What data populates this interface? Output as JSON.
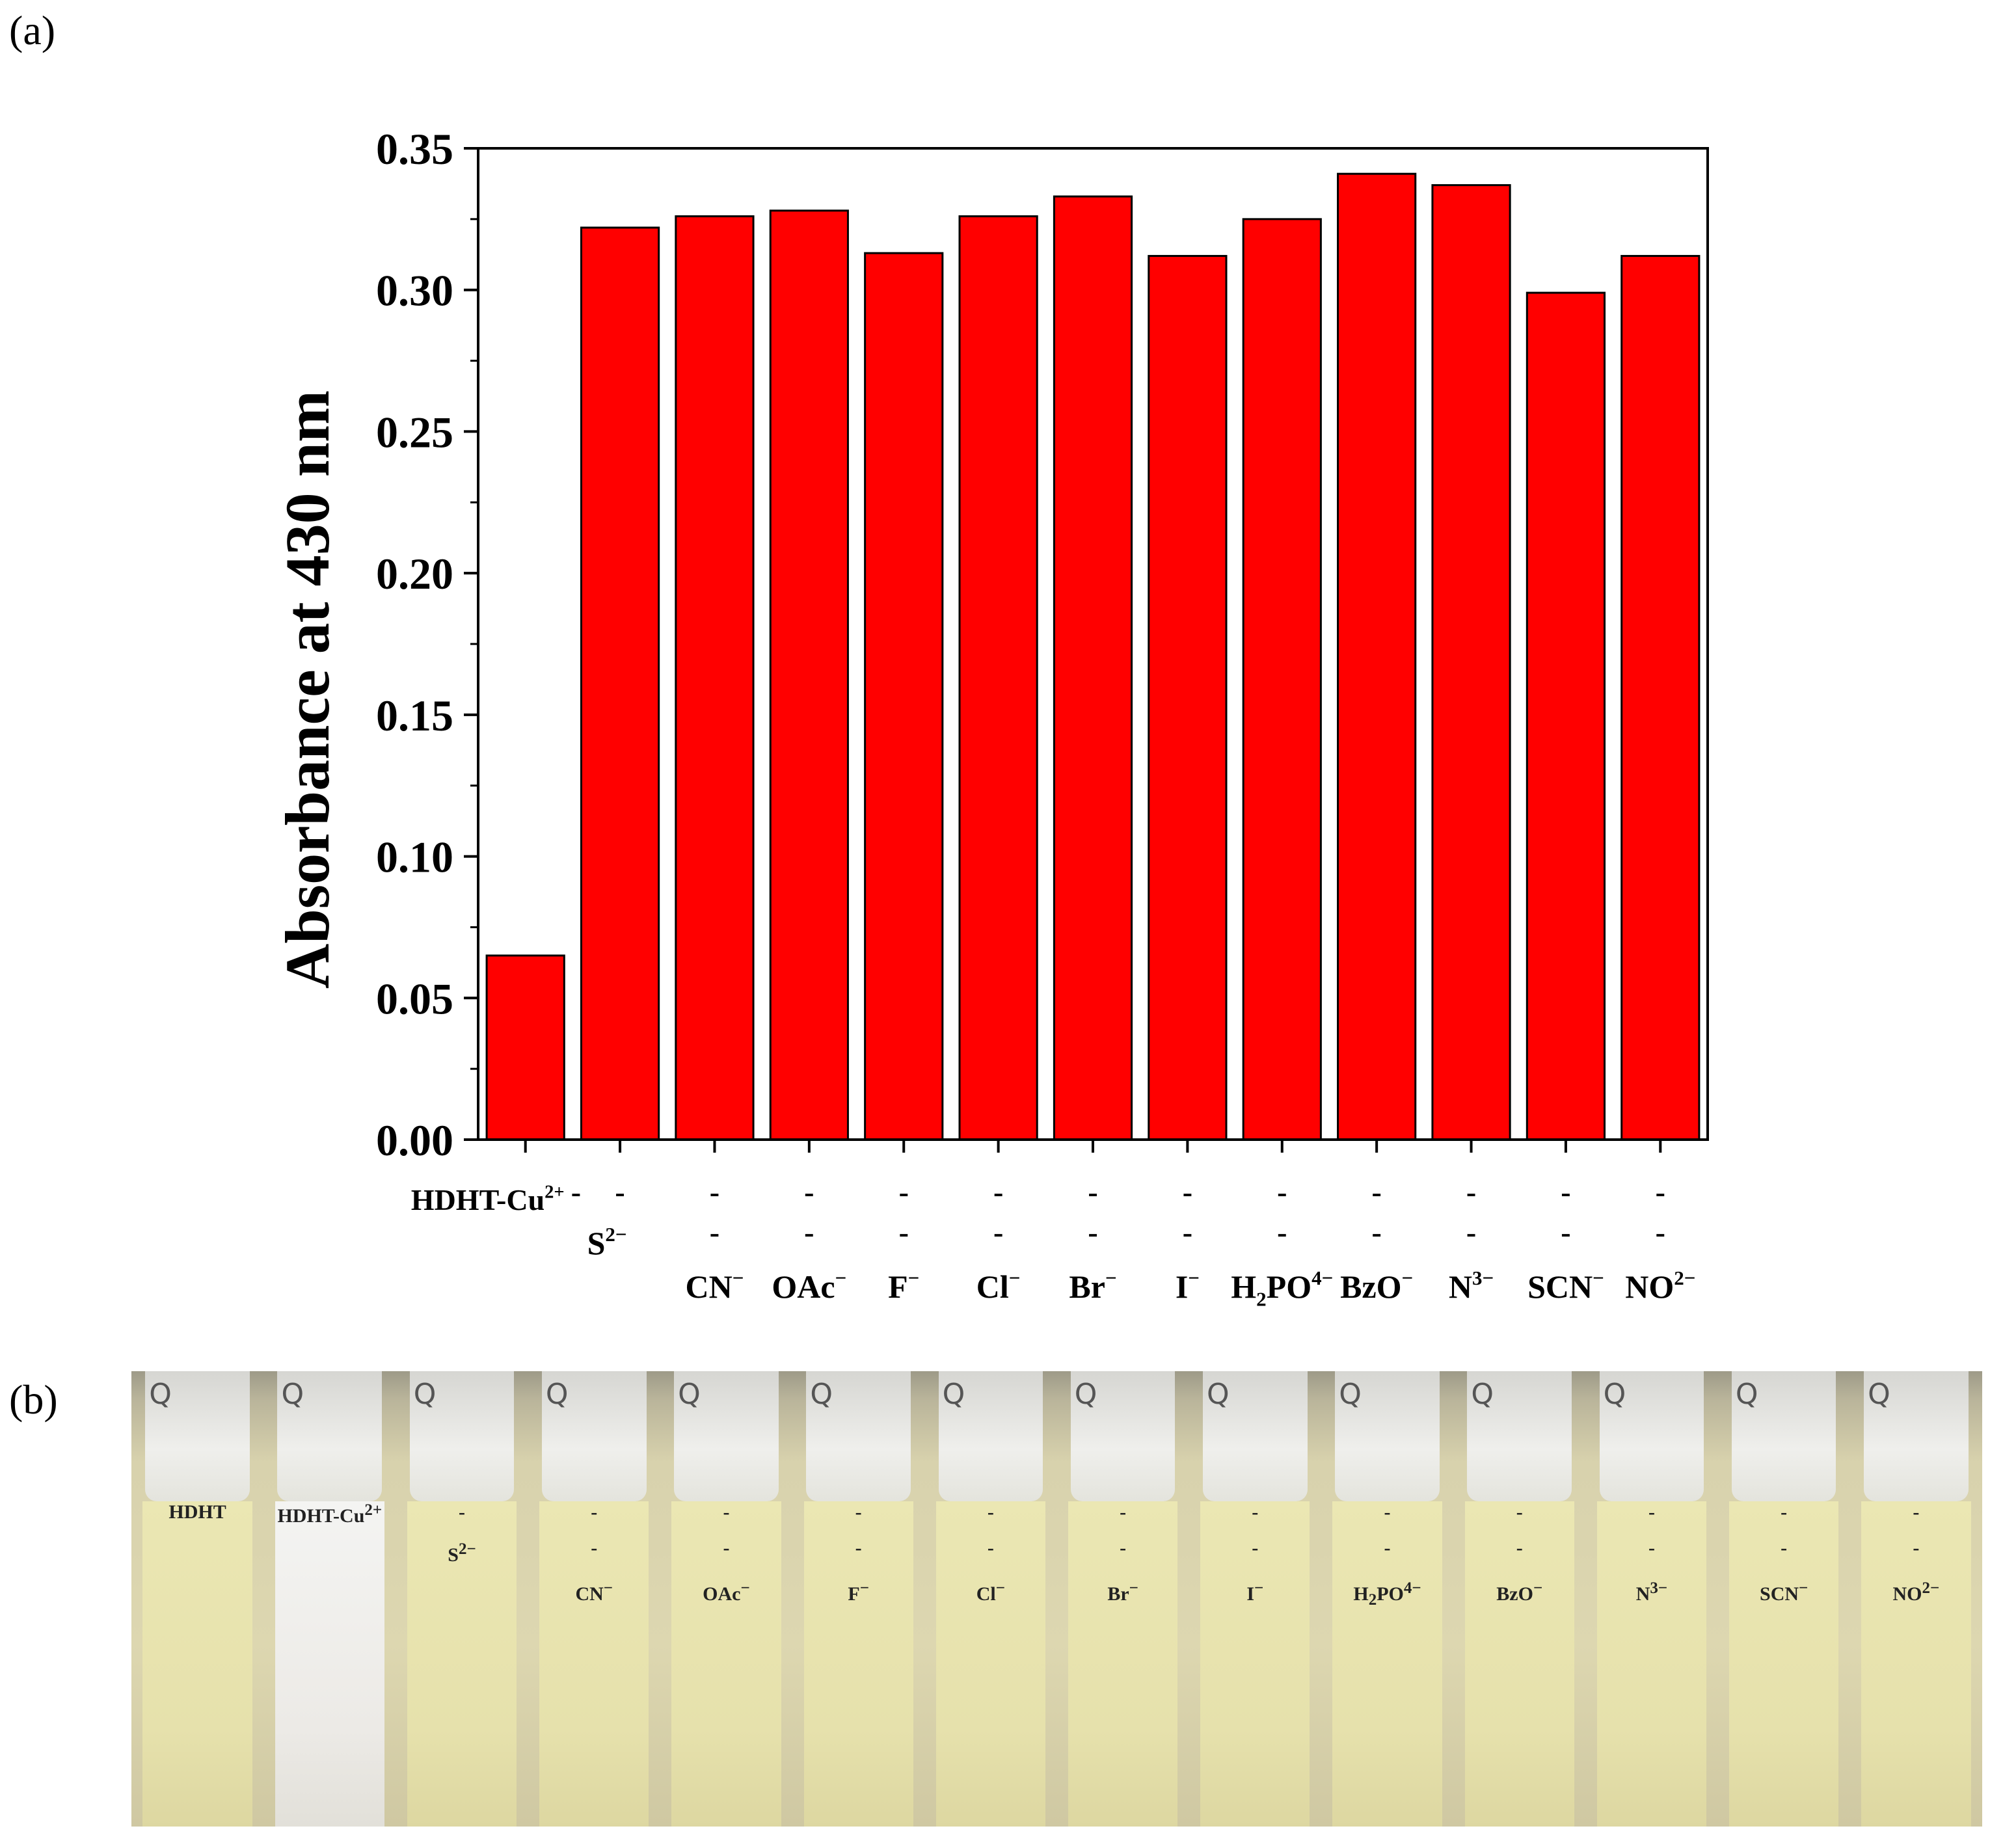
{
  "panel_a_label": "(a)",
  "panel_b_label": "(b)",
  "chart_data": {
    "type": "bar",
    "categories": [
      "HDHT-Cu2+",
      "S2−",
      "CN−",
      "OAc−",
      "F−",
      "Cl−",
      "Br−",
      "I−",
      "H2PO4−",
      "BzO−",
      "N3−",
      "SCN−",
      "NO2−"
    ],
    "values": [
      0.065,
      0.322,
      0.326,
      0.328,
      0.313,
      0.326,
      0.333,
      0.312,
      0.325,
      0.341,
      0.337,
      0.299,
      0.312
    ],
    "ylabel": "Absorbance at 430 nm",
    "xlabel": "",
    "ylim": [
      0,
      0.35
    ],
    "yticks": [
      "0.00",
      "0.05",
      "0.10",
      "0.15",
      "0.20",
      "0.25",
      "0.30",
      "0.35"
    ],
    "bar_color": "#ff0000",
    "dash_mark": "-",
    "row_labels": {
      "row1": "HDHT-Cu2+",
      "row2": "S2−",
      "row3": [
        "CN−",
        "OAc−",
        "F−",
        "Cl−",
        "Br−",
        "I−",
        "H2PO4−",
        "BzO−",
        "N3−",
        "SCN−",
        "NO2−"
      ]
    }
  },
  "photo": {
    "cuvettes": [
      {
        "label": "HDHT",
        "liquid": "yellow"
      },
      {
        "label": "HDHT-Cu2+",
        "liquid": "clear"
      },
      {
        "label": "S2−",
        "liquid": "yellow"
      },
      {
        "label": "CN−",
        "liquid": "yellow"
      },
      {
        "label": "OAc−",
        "liquid": "yellow"
      },
      {
        "label": "F−",
        "liquid": "yellow"
      },
      {
        "label": "Cl−",
        "liquid": "yellow"
      },
      {
        "label": "Br−",
        "liquid": "yellow"
      },
      {
        "label": "I−",
        "liquid": "yellow"
      },
      {
        "label": "H2PO4−",
        "liquid": "yellow"
      },
      {
        "label": "BzO−",
        "liquid": "yellow"
      },
      {
        "label": "N3−",
        "liquid": "yellow"
      },
      {
        "label": "SCN−",
        "liquid": "yellow"
      },
      {
        "label": "NO2−",
        "liquid": "yellow"
      }
    ],
    "cap_mark": "Q",
    "dash_mark": "-"
  }
}
